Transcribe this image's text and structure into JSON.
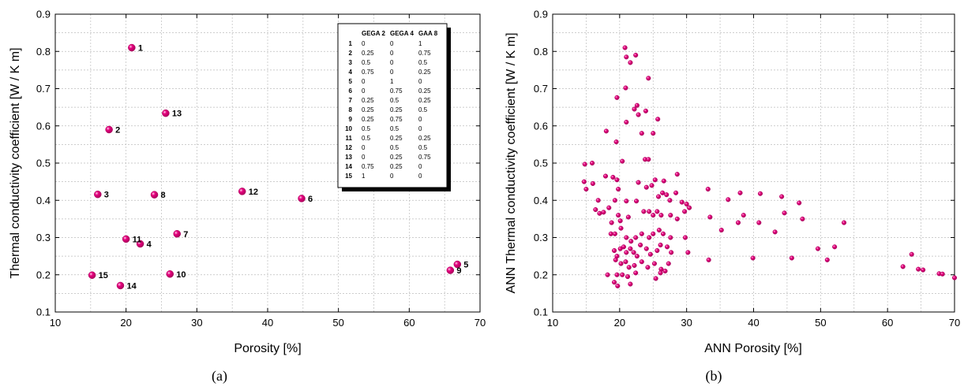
{
  "colors": {
    "marker": "#e6007e",
    "marker_edge": "#a8005a",
    "grid": "#bdbdbd"
  },
  "chart_data": [
    {
      "type": "scatter",
      "panel_label": "(a)",
      "xlabel": "Porosity [%]",
      "ylabel": "Thermal conductivity coefficient [W / K m]",
      "xlim": [
        10,
        70
      ],
      "ylim": [
        0.1,
        0.9
      ],
      "xticks": [
        10,
        20,
        30,
        40,
        50,
        60,
        70
      ],
      "yticks": [
        0.1,
        0.2,
        0.3,
        0.4,
        0.5,
        0.6,
        0.7,
        0.8,
        0.9
      ],
      "grid": true,
      "points": [
        {
          "label": "1",
          "x": 20.8,
          "y": 0.81
        },
        {
          "label": "2",
          "x": 17.6,
          "y": 0.59
        },
        {
          "label": "3",
          "x": 16.0,
          "y": 0.416
        },
        {
          "label": "4",
          "x": 22.0,
          "y": 0.283
        },
        {
          "label": "5",
          "x": 66.8,
          "y": 0.228
        },
        {
          "label": "6",
          "x": 44.8,
          "y": 0.405
        },
        {
          "label": "7",
          "x": 27.2,
          "y": 0.31
        },
        {
          "label": "8",
          "x": 24.0,
          "y": 0.415
        },
        {
          "label": "9",
          "x": 65.8,
          "y": 0.212
        },
        {
          "label": "10",
          "x": 26.2,
          "y": 0.202
        },
        {
          "label": "11",
          "x": 20.0,
          "y": 0.296
        },
        {
          "label": "12",
          "x": 36.4,
          "y": 0.424
        },
        {
          "label": "13",
          "x": 25.6,
          "y": 0.634
        },
        {
          "label": "14",
          "x": 19.2,
          "y": 0.171
        },
        {
          "label": "15",
          "x": 15.2,
          "y": 0.199
        }
      ],
      "legend_table": {
        "headers": [
          "",
          "GEGA 2",
          "GEGA 4",
          "GAA 8"
        ],
        "rows": [
          [
            "1",
            "0",
            "0",
            "1"
          ],
          [
            "2",
            "0.25",
            "0",
            "0.75"
          ],
          [
            "3",
            "0.5",
            "0",
            "0.5"
          ],
          [
            "4",
            "0.75",
            "0",
            "0.25"
          ],
          [
            "5",
            "0",
            "1",
            "0"
          ],
          [
            "6",
            "0",
            "0.75",
            "0.25"
          ],
          [
            "7",
            "0.25",
            "0.5",
            "0.25"
          ],
          [
            "8",
            "0.25",
            "0.25",
            "0.5"
          ],
          [
            "9",
            "0.25",
            "0.75",
            "0"
          ],
          [
            "10",
            "0.5",
            "0.5",
            "0"
          ],
          [
            "11",
            "0.5",
            "0.25",
            "0.25"
          ],
          [
            "12",
            "0",
            "0.5",
            "0.5"
          ],
          [
            "13",
            "0",
            "0.25",
            "0.75"
          ],
          [
            "14",
            "0.75",
            "0.25",
            "0"
          ],
          [
            "15",
            "1",
            "0",
            "0"
          ]
        ]
      }
    },
    {
      "type": "scatter",
      "panel_label": "(b)",
      "xlabel": "ANN Porosity [%]",
      "ylabel": "ANN Thermal conductivity coefficient [W / K m]",
      "xlim": [
        10,
        70
      ],
      "ylim": [
        0.1,
        0.9
      ],
      "xticks": [
        10,
        20,
        30,
        40,
        50,
        60,
        70
      ],
      "yticks": [
        0.1,
        0.2,
        0.3,
        0.4,
        0.5,
        0.6,
        0.7,
        0.8,
        0.9
      ],
      "grid": true,
      "points": [
        [
          20.8,
          0.81
        ],
        [
          21.0,
          0.785
        ],
        [
          21.6,
          0.77
        ],
        [
          22.4,
          0.79
        ],
        [
          24.3,
          0.728
        ],
        [
          20.9,
          0.702
        ],
        [
          19.6,
          0.676
        ],
        [
          22.2,
          0.645
        ],
        [
          22.6,
          0.655
        ],
        [
          23.9,
          0.64
        ],
        [
          21.0,
          0.61
        ],
        [
          25.7,
          0.618
        ],
        [
          22.8,
          0.63
        ],
        [
          18.0,
          0.586
        ],
        [
          19.5,
          0.557
        ],
        [
          23.3,
          0.58
        ],
        [
          25.0,
          0.58
        ],
        [
          23.8,
          0.51
        ],
        [
          24.3,
          0.51
        ],
        [
          14.8,
          0.497
        ],
        [
          15.9,
          0.5
        ],
        [
          20.4,
          0.505
        ],
        [
          28.6,
          0.47
        ],
        [
          17.9,
          0.465
        ],
        [
          19.0,
          0.462
        ],
        [
          19.6,
          0.455
        ],
        [
          25.3,
          0.455
        ],
        [
          26.6,
          0.452
        ],
        [
          16.0,
          0.445
        ],
        [
          22.8,
          0.448
        ],
        [
          24.8,
          0.44
        ],
        [
          14.7,
          0.45
        ],
        [
          19.8,
          0.43
        ],
        [
          24.0,
          0.435
        ],
        [
          21.0,
          0.398
        ],
        [
          22.5,
          0.398
        ],
        [
          25.8,
          0.41
        ],
        [
          26.4,
          0.42
        ],
        [
          27.0,
          0.415
        ],
        [
          27.5,
          0.4
        ],
        [
          28.4,
          0.42
        ],
        [
          29.3,
          0.395
        ],
        [
          30.0,
          0.39
        ],
        [
          33.2,
          0.43
        ],
        [
          36.2,
          0.402
        ],
        [
          38.0,
          0.42
        ],
        [
          38.5,
          0.36
        ],
        [
          41.0,
          0.418
        ],
        [
          44.2,
          0.41
        ],
        [
          44.6,
          0.366
        ],
        [
          46.8,
          0.393
        ],
        [
          47.3,
          0.35
        ],
        [
          53.5,
          0.34
        ],
        [
          15.0,
          0.43
        ],
        [
          16.8,
          0.4
        ],
        [
          16.4,
          0.375
        ],
        [
          17.0,
          0.365
        ],
        [
          17.6,
          0.368
        ],
        [
          18.4,
          0.38
        ],
        [
          19.3,
          0.4
        ],
        [
          19.8,
          0.36
        ],
        [
          18.8,
          0.34
        ],
        [
          20.1,
          0.345
        ],
        [
          21.3,
          0.355
        ],
        [
          23.6,
          0.37
        ],
        [
          24.4,
          0.37
        ],
        [
          25.0,
          0.36
        ],
        [
          25.6,
          0.37
        ],
        [
          26.2,
          0.36
        ],
        [
          27.6,
          0.36
        ],
        [
          28.6,
          0.35
        ],
        [
          29.7,
          0.37
        ],
        [
          30.4,
          0.38
        ],
        [
          33.5,
          0.355
        ],
        [
          35.2,
          0.32
        ],
        [
          37.7,
          0.34
        ],
        [
          40.8,
          0.34
        ],
        [
          43.2,
          0.315
        ],
        [
          18.7,
          0.31
        ],
        [
          19.3,
          0.31
        ],
        [
          20.2,
          0.325
        ],
        [
          21.0,
          0.3
        ],
        [
          21.7,
          0.29
        ],
        [
          22.4,
          0.3
        ],
        [
          23.3,
          0.31
        ],
        [
          24.4,
          0.3
        ],
        [
          25.0,
          0.31
        ],
        [
          25.9,
          0.32
        ],
        [
          26.5,
          0.31
        ],
        [
          27.6,
          0.3
        ],
        [
          29.8,
          0.3
        ],
        [
          30.2,
          0.26
        ],
        [
          33.3,
          0.24
        ],
        [
          39.9,
          0.245
        ],
        [
          45.7,
          0.245
        ],
        [
          49.6,
          0.27
        ],
        [
          51.0,
          0.24
        ],
        [
          52.1,
          0.275
        ],
        [
          19.2,
          0.265
        ],
        [
          19.6,
          0.25
        ],
        [
          20.1,
          0.27
        ],
        [
          20.6,
          0.275
        ],
        [
          21.0,
          0.26
        ],
        [
          21.6,
          0.27
        ],
        [
          22.1,
          0.26
        ],
        [
          22.6,
          0.25
        ],
        [
          23.1,
          0.28
        ],
        [
          24.0,
          0.27
        ],
        [
          24.6,
          0.255
        ],
        [
          25.6,
          0.265
        ],
        [
          26.1,
          0.28
        ],
        [
          27.1,
          0.275
        ],
        [
          27.7,
          0.26
        ],
        [
          19.4,
          0.24
        ],
        [
          20.2,
          0.23
        ],
        [
          20.9,
          0.235
        ],
        [
          21.4,
          0.22
        ],
        [
          22.2,
          0.225
        ],
        [
          23.3,
          0.235
        ],
        [
          24.2,
          0.22
        ],
        [
          25.2,
          0.23
        ],
        [
          26.2,
          0.215
        ],
        [
          27.3,
          0.23
        ],
        [
          18.2,
          0.2
        ],
        [
          19.6,
          0.2
        ],
        [
          20.4,
          0.2
        ],
        [
          21.2,
          0.195
        ],
        [
          22.4,
          0.205
        ],
        [
          25.4,
          0.19
        ],
        [
          26.1,
          0.205
        ],
        [
          26.8,
          0.21
        ],
        [
          19.2,
          0.18
        ],
        [
          19.7,
          0.17
        ],
        [
          21.6,
          0.175
        ],
        [
          62.3,
          0.222
        ],
        [
          63.6,
          0.255
        ],
        [
          64.6,
          0.215
        ],
        [
          65.3,
          0.213
        ],
        [
          67.7,
          0.203
        ],
        [
          68.2,
          0.202
        ],
        [
          70.0,
          0.192
        ]
      ]
    }
  ]
}
